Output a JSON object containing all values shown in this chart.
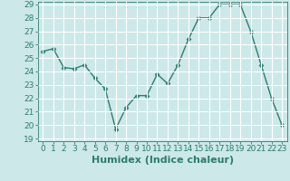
{
  "x": [
    0,
    1,
    2,
    3,
    4,
    5,
    6,
    7,
    8,
    9,
    10,
    11,
    12,
    13,
    14,
    15,
    16,
    17,
    18,
    19,
    20,
    21,
    22,
    23
  ],
  "y": [
    25.5,
    25.7,
    24.3,
    24.2,
    24.5,
    23.5,
    22.7,
    19.7,
    21.3,
    22.2,
    22.2,
    23.8,
    23.1,
    24.5,
    26.4,
    28.0,
    28.0,
    29.0,
    29.0,
    29.0,
    27.0,
    24.5,
    22.0,
    20.0
  ],
  "xlabel": "Humidex (Indice chaleur)",
  "ylim": [
    19,
    29
  ],
  "xlim_min": -0.5,
  "xlim_max": 23.5,
  "yticks": [
    19,
    20,
    21,
    22,
    23,
    24,
    25,
    26,
    27,
    28,
    29
  ],
  "xticks": [
    0,
    1,
    2,
    3,
    4,
    5,
    6,
    7,
    8,
    9,
    10,
    11,
    12,
    13,
    14,
    15,
    16,
    17,
    18,
    19,
    20,
    21,
    22,
    23
  ],
  "line_color": "#2d7d6e",
  "marker": "D",
  "marker_size": 2.5,
  "bg_color": "#cce8e8",
  "grid_color": "#b8d8d8",
  "tick_label_color": "#2d7d6e",
  "xlabel_fontsize": 8,
  "tick_fontsize": 6.5,
  "linewidth": 1.0
}
